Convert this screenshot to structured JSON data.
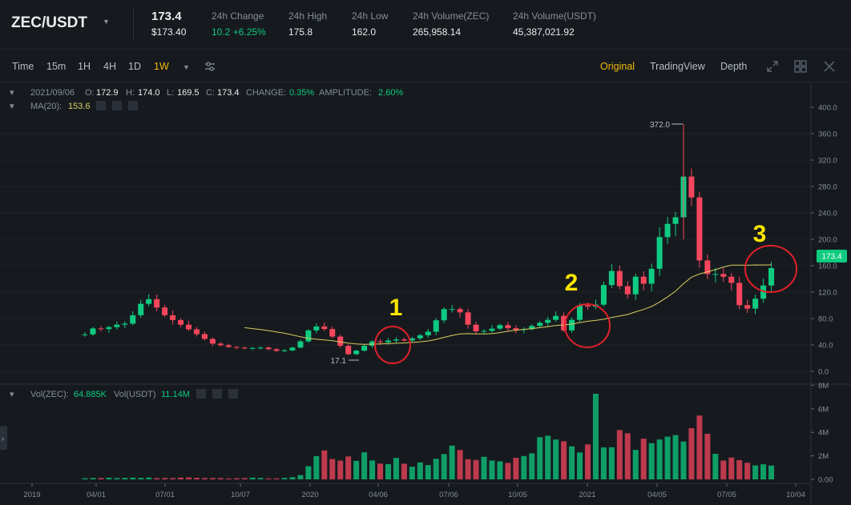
{
  "header": {
    "pair": "ZEC/USDT",
    "price": "173.4",
    "price_usd": "$173.40",
    "stats": [
      {
        "label": "24h Change",
        "value": "10.2 +6.25%",
        "up": true
      },
      {
        "label": "24h High",
        "value": "175.8"
      },
      {
        "label": "24h Low",
        "value": "162.0"
      },
      {
        "label": "24h Volume(ZEC)",
        "value": "265,958.14"
      },
      {
        "label": "24h Volume(USDT)",
        "value": "45,387,021.92"
      }
    ]
  },
  "toolbar": {
    "intervals": [
      "Time",
      "15m",
      "1H",
      "4H",
      "1D",
      "1W"
    ],
    "active_interval": "1W",
    "views": [
      "Original",
      "TradingView",
      "Depth"
    ],
    "active_view": "Original"
  },
  "legend": {
    "date": "2021/09/06",
    "o_label": "O:",
    "o": "172.9",
    "h_label": "H:",
    "h": "174.0",
    "l_label": "L:",
    "l": "169.5",
    "c_label": "C:",
    "c": "173.4",
    "change_label": "CHANGE:",
    "change": "0.35%",
    "amp_label": "AMPLITUDE:",
    "amp": "2.60%",
    "ma_label": "MA(20):",
    "ma": "153.6",
    "vol_label": "Vol(ZEC):",
    "vol": "64.885K",
    "volusdt_label": "Vol(USDT)",
    "volusdt": "11.14M"
  },
  "annotations": [
    "1",
    "2",
    "3"
  ],
  "colors": {
    "up": "#0ecb81",
    "down": "#f6465d",
    "ma": "#d9cd5f",
    "accent": "#f0b90b",
    "circle": "#e0202a",
    "marker": "#ffe600"
  },
  "chart_data": {
    "type": "candlestick",
    "title": "ZEC/USDT 1W",
    "price_axis_ticks": [
      "0.0",
      "40.0",
      "80.0",
      "120.0",
      "160.0",
      "200.0",
      "240.0",
      "280.0",
      "320.0",
      "360.0",
      "400.0"
    ],
    "volume_axis_ticks": [
      "0.00",
      "2M",
      "4M",
      "6M",
      "8M"
    ],
    "x_ticks": [
      "2019",
      "04/01",
      "07/01",
      "10/07",
      "2020",
      "04/06",
      "07/06",
      "10/05",
      "2021",
      "04/05",
      "07/05",
      "10/04"
    ],
    "ylim": [
      0,
      400
    ],
    "volume_ylim": [
      0,
      8000000
    ],
    "last_price": "173.4",
    "max_label": "372.0",
    "min_label": "17.1",
    "price_path": [
      [
        0,
        56
      ],
      [
        8,
        68
      ],
      [
        14,
        62
      ],
      [
        22,
        72
      ],
      [
        28,
        68
      ],
      [
        36,
        85
      ],
      [
        44,
        108
      ],
      [
        50,
        110
      ],
      [
        56,
        90
      ],
      [
        64,
        80
      ],
      [
        76,
        66
      ],
      [
        86,
        54
      ],
      [
        96,
        42
      ],
      [
        108,
        37
      ],
      [
        120,
        35
      ],
      [
        132,
        36
      ],
      [
        144,
        31
      ],
      [
        152,
        32
      ],
      [
        160,
        40
      ],
      [
        168,
        62
      ],
      [
        175,
        69
      ],
      [
        182,
        62
      ],
      [
        188,
        48
      ],
      [
        194,
        34
      ],
      [
        200,
        22
      ],
      [
        206,
        36
      ],
      [
        212,
        40
      ],
      [
        218,
        48
      ],
      [
        224,
        42
      ],
      [
        230,
        49
      ],
      [
        236,
        48
      ],
      [
        242,
        46
      ],
      [
        248,
        52
      ],
      [
        254,
        56
      ],
      [
        260,
        62
      ],
      [
        266,
        85
      ],
      [
        272,
        99
      ],
      [
        278,
        92
      ],
      [
        284,
        88
      ],
      [
        290,
        62
      ],
      [
        296,
        60
      ],
      [
        302,
        62
      ],
      [
        308,
        66
      ],
      [
        314,
        72
      ],
      [
        320,
        62
      ],
      [
        330,
        64
      ],
      [
        340,
        72
      ],
      [
        348,
        78
      ],
      [
        354,
        84
      ],
      [
        360,
        62
      ],
      [
        366,
        78
      ],
      [
        372,
        100
      ],
      [
        378,
        98
      ],
      [
        382,
        90
      ],
      [
        386,
        112
      ],
      [
        392,
        140
      ],
      [
        398,
        158
      ],
      [
        406,
        100
      ],
      [
        412,
        150
      ],
      [
        418,
        130
      ],
      [
        424,
        138
      ],
      [
        430,
        190
      ],
      [
        436,
        230
      ],
      [
        442,
        210
      ],
      [
        448,
        280
      ],
      [
        452,
        310
      ],
      [
        458,
        240
      ],
      [
        464,
        132
      ],
      [
        470,
        155
      ],
      [
        478,
        140
      ],
      [
        484,
        150
      ],
      [
        490,
        102
      ],
      [
        498,
        95
      ],
      [
        504,
        110
      ],
      [
        510,
        130
      ],
      [
        514,
        148
      ],
      [
        520,
        173
      ]
    ],
    "volume_path": [
      [
        0,
        0.08
      ],
      [
        14,
        0.12
      ],
      [
        28,
        0.1
      ],
      [
        40,
        0.18
      ],
      [
        52,
        0.1
      ],
      [
        66,
        0.12
      ],
      [
        80,
        0.15
      ],
      [
        96,
        0.1
      ],
      [
        112,
        0.1
      ],
      [
        128,
        0.12
      ],
      [
        144,
        0.08
      ],
      [
        156,
        0.22
      ],
      [
        166,
        0.45
      ],
      [
        172,
        2.8
      ],
      [
        178,
        2.2
      ],
      [
        184,
        1.6
      ],
      [
        194,
        2.2
      ],
      [
        206,
        1.8
      ],
      [
        212,
        2.3
      ],
      [
        222,
        1.2
      ],
      [
        232,
        1.6
      ],
      [
        244,
        1.1
      ],
      [
        256,
        1.3
      ],
      [
        268,
        2.2
      ],
      [
        280,
        2.5
      ],
      [
        292,
        2.0
      ],
      [
        304,
        1.9
      ],
      [
        318,
        1.4
      ],
      [
        330,
        2.6
      ],
      [
        340,
        3.0
      ],
      [
        348,
        3.8
      ],
      [
        354,
        3.3
      ],
      [
        360,
        2.7
      ],
      [
        366,
        3.5
      ],
      [
        372,
        2.4
      ],
      [
        380,
        3.8
      ],
      [
        384,
        7.7
      ],
      [
        388,
        4.3
      ],
      [
        392,
        2.8
      ],
      [
        400,
        3.9
      ],
      [
        410,
        3.2
      ],
      [
        420,
        3.4
      ],
      [
        430,
        3.5
      ],
      [
        438,
        4.2
      ],
      [
        446,
        3.1
      ],
      [
        452,
        3.3
      ],
      [
        458,
        5.9
      ],
      [
        464,
        4.7
      ],
      [
        472,
        1.8
      ],
      [
        480,
        1.7
      ],
      [
        490,
        1.4
      ],
      [
        500,
        1.5
      ],
      [
        510,
        1.5
      ],
      [
        520,
        1.4
      ]
    ]
  }
}
